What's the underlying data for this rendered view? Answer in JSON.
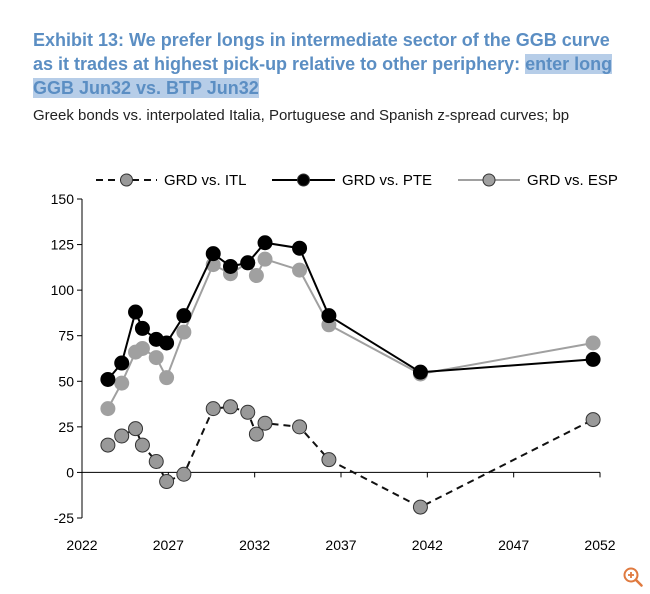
{
  "header": {
    "title_main": "Exhibit 13: We prefer longs in intermediate sector of the GGB curve as it trades at highest pick-up relative to other periphery: ",
    "title_highlight": "enter long GGB Jun32 vs. BTP Jun32",
    "subtitle": "Greek bonds vs. interpolated Italia, Portuguese and Spanish z-spread curves; bp"
  },
  "zoom_icon": "zoom-in-icon",
  "chart_data": {
    "type": "line",
    "xlim": [
      2022,
      2052
    ],
    "ylim": [
      -25,
      150
    ],
    "x_ticks": [
      2022,
      2027,
      2032,
      2037,
      2042,
      2047,
      2052
    ],
    "y_ticks": [
      150,
      125,
      100,
      75,
      50,
      25,
      0,
      -25
    ],
    "legend_position": "top",
    "grid": false,
    "series": [
      {
        "name": "GRD vs. ITL",
        "style": "dashed",
        "line_color": "#111111",
        "marker_color": "#999999",
        "x": [
          2023.5,
          2024.3,
          2025.1,
          2025.5,
          2026.3,
          2026.9,
          2027.9,
          2029.6,
          2030.6,
          2031.6,
          2032.1,
          2032.6,
          2034.6,
          2036.3,
          2041.6,
          2051.6
        ],
        "y": [
          15,
          20,
          24,
          15,
          6,
          -5,
          -1,
          35,
          36,
          33,
          21,
          27,
          25,
          7,
          -19,
          29
        ]
      },
      {
        "name": "GRD vs. PTE",
        "style": "solid",
        "line_color": "#000000",
        "marker_color": "#000000",
        "x": [
          2023.5,
          2024.3,
          2025.1,
          2025.5,
          2026.3,
          2026.9,
          2027.9,
          2029.6,
          2030.6,
          2031.6,
          2032.6,
          2034.6,
          2036.3,
          2041.6,
          2051.6
        ],
        "y": [
          51,
          60,
          88,
          79,
          73,
          71,
          86,
          120,
          113,
          115,
          126,
          123,
          86,
          55,
          62
        ]
      },
      {
        "name": "GRD vs. ESP",
        "style": "solid",
        "line_color": "#a0a0a0",
        "marker_color": "#a0a0a0",
        "x": [
          2023.5,
          2024.3,
          2025.1,
          2025.5,
          2026.3,
          2026.9,
          2027.9,
          2029.6,
          2030.6,
          2031.6,
          2032.1,
          2032.6,
          2034.6,
          2036.3,
          2041.6,
          2051.6
        ],
        "y": [
          35,
          49,
          66,
          68,
          63,
          52,
          77,
          114,
          109,
          115,
          108,
          117,
          111,
          81,
          54,
          71
        ]
      }
    ]
  }
}
